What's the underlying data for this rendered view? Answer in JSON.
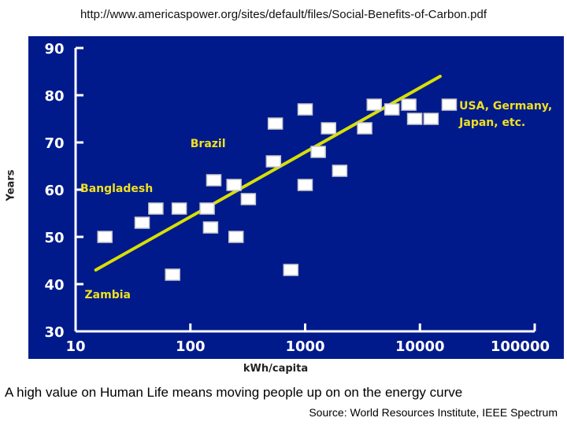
{
  "header": {
    "url": "http://www.americaspower.org/sites/default/files/Social-Benefits-of-Carbon.pdf"
  },
  "footer": {
    "caption": "A high value on Human Life means moving people up on on the energy curve",
    "source": "Source: World Resources Institute, IEEE Spectrum"
  },
  "colors": {
    "background": "#001a8c",
    "axis": "#ffffff",
    "trend": "#d8e000",
    "text_yellow": "#f0e020",
    "marker": "#ffffff"
  },
  "chart_data": {
    "type": "scatter",
    "xlabel": "kWh/capita",
    "ylabel": "Years",
    "xscale": "log",
    "xlim": [
      10,
      100000
    ],
    "ylim": [
      30,
      90
    ],
    "x_ticks": [
      10,
      100,
      1000,
      10000,
      100000
    ],
    "x_tick_labels": [
      "10",
      "100",
      "1000",
      "10000",
      "100000"
    ],
    "y_ticks": [
      30,
      40,
      50,
      60,
      70,
      80,
      90
    ],
    "y_tick_labels": [
      "30",
      "40",
      "50",
      "60",
      "70",
      "80",
      "90"
    ],
    "points": [
      {
        "x": 18,
        "y": 50
      },
      {
        "x": 38,
        "y": 53
      },
      {
        "x": 50,
        "y": 56
      },
      {
        "x": 80,
        "y": 56
      },
      {
        "x": 70,
        "y": 42
      },
      {
        "x": 140,
        "y": 56
      },
      {
        "x": 150,
        "y": 52
      },
      {
        "x": 160,
        "y": 62
      },
      {
        "x": 240,
        "y": 61
      },
      {
        "x": 250,
        "y": 50
      },
      {
        "x": 320,
        "y": 58
      },
      {
        "x": 530,
        "y": 66
      },
      {
        "x": 550,
        "y": 74
      },
      {
        "x": 750,
        "y": 43
      },
      {
        "x": 1000,
        "y": 61
      },
      {
        "x": 1000,
        "y": 77
      },
      {
        "x": 1300,
        "y": 68
      },
      {
        "x": 1600,
        "y": 73
      },
      {
        "x": 2000,
        "y": 64
      },
      {
        "x": 3300,
        "y": 73
      },
      {
        "x": 4000,
        "y": 78
      },
      {
        "x": 5700,
        "y": 77
      },
      {
        "x": 8000,
        "y": 78
      },
      {
        "x": 9000,
        "y": 75
      },
      {
        "x": 12500,
        "y": 75
      },
      {
        "x": 18000,
        "y": 78
      }
    ],
    "trendline": {
      "x": [
        15,
        15000
      ],
      "y": [
        43,
        84
      ]
    },
    "annotations": [
      {
        "text": "Bangladesh",
        "x": 11,
        "y": 59.5
      },
      {
        "text": "Brazil",
        "x": 100,
        "y": 69
      },
      {
        "text": "Zambia",
        "x": 12,
        "y": 37
      },
      {
        "text": "USA, Germany,",
        "x": 22000,
        "y": 77
      },
      {
        "text": "Japan, etc.",
        "x": 22000,
        "y": 73.5
      }
    ]
  }
}
